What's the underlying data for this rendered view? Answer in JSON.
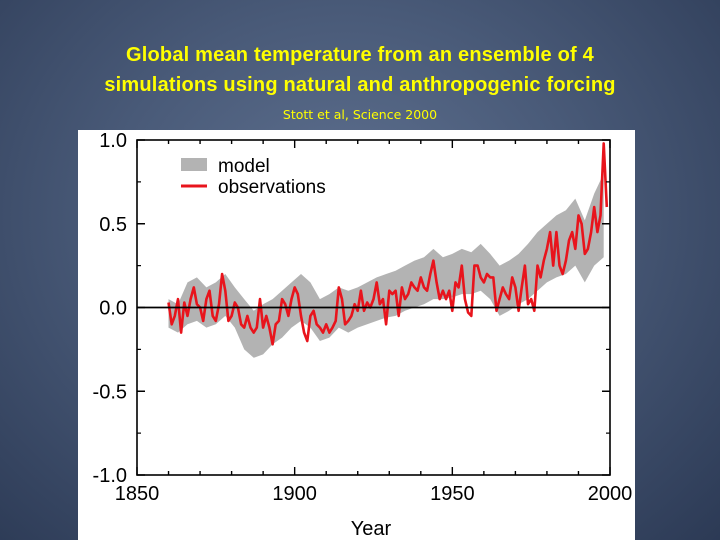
{
  "slide": {
    "title_line1": "Global mean temperature from an ensemble of 4",
    "title_line2": "simulations using natural and anthropogenic forcing",
    "citation": "Stott et al, Science 2000"
  },
  "colors": {
    "background": "#4a5b79",
    "title": "#ffff00",
    "model_band": "#b3b3b3",
    "observations": "#e8141c"
  },
  "chart_data": {
    "type": "line",
    "xlabel": "Year",
    "ylabel": "",
    "xlim": [
      1850,
      2000
    ],
    "ylim": [
      -1.0,
      1.0
    ],
    "x_ticks": [
      1850,
      1900,
      1950,
      2000
    ],
    "x_tick_labels": [
      "1850",
      "1900",
      "1950",
      "2000"
    ],
    "y_ticks": [
      1.0,
      0.5,
      0.0,
      -0.5,
      -1.0
    ],
    "y_tick_labels": [
      "1.0",
      "0.5",
      "0.0",
      "-0.5",
      "-1.0"
    ],
    "zero_line": 0.0,
    "grid": false,
    "legend_position": "top-left",
    "series": [
      {
        "name": "model",
        "kind": "band",
        "color": "#b3b3b3",
        "x": [
          1860,
          1863,
          1866,
          1869,
          1872,
          1875,
          1878,
          1881,
          1884,
          1887,
          1890,
          1893,
          1896,
          1899,
          1902,
          1905,
          1908,
          1911,
          1914,
          1917,
          1920,
          1923,
          1926,
          1929,
          1932,
          1935,
          1938,
          1941,
          1944,
          1947,
          1950,
          1953,
          1956,
          1959,
          1962,
          1965,
          1968,
          1971,
          1974,
          1977,
          1980,
          1983,
          1986,
          1989,
          1992,
          1995,
          1998
        ],
        "lower": [
          -0.12,
          -0.15,
          -0.1,
          -0.08,
          -0.12,
          -0.1,
          -0.05,
          -0.12,
          -0.25,
          -0.3,
          -0.28,
          -0.22,
          -0.18,
          -0.12,
          -0.08,
          -0.12,
          -0.2,
          -0.18,
          -0.12,
          -0.15,
          -0.12,
          -0.1,
          -0.08,
          -0.06,
          -0.05,
          -0.02,
          0.0,
          0.02,
          0.05,
          0.05,
          0.06,
          0.08,
          0.08,
          0.1,
          0.05,
          -0.05,
          -0.02,
          0.02,
          0.05,
          0.1,
          0.15,
          0.18,
          0.2,
          0.25,
          0.15,
          0.25,
          0.3
        ],
        "upper": [
          0.05,
          0.02,
          0.15,
          0.18,
          0.12,
          0.15,
          0.2,
          0.12,
          0.05,
          -0.02,
          0.02,
          0.05,
          0.1,
          0.15,
          0.2,
          0.15,
          0.05,
          0.08,
          0.12,
          0.1,
          0.12,
          0.15,
          0.18,
          0.2,
          0.22,
          0.25,
          0.28,
          0.3,
          0.35,
          0.3,
          0.32,
          0.35,
          0.33,
          0.38,
          0.32,
          0.25,
          0.28,
          0.32,
          0.38,
          0.45,
          0.5,
          0.55,
          0.58,
          0.65,
          0.52,
          0.68,
          0.8
        ]
      },
      {
        "name": "observations",
        "kind": "line",
        "color": "#e8141c",
        "x": [
          1860,
          1861,
          1862,
          1863,
          1864,
          1865,
          1866,
          1867,
          1868,
          1869,
          1870,
          1871,
          1872,
          1873,
          1874,
          1875,
          1876,
          1877,
          1878,
          1879,
          1880,
          1881,
          1882,
          1883,
          1884,
          1885,
          1886,
          1887,
          1888,
          1889,
          1890,
          1891,
          1892,
          1893,
          1894,
          1895,
          1896,
          1897,
          1898,
          1899,
          1900,
          1901,
          1902,
          1903,
          1904,
          1905,
          1906,
          1907,
          1908,
          1909,
          1910,
          1911,
          1912,
          1913,
          1914,
          1915,
          1916,
          1917,
          1918,
          1919,
          1920,
          1921,
          1922,
          1923,
          1924,
          1925,
          1926,
          1927,
          1928,
          1929,
          1930,
          1931,
          1932,
          1933,
          1934,
          1935,
          1936,
          1937,
          1938,
          1939,
          1940,
          1941,
          1942,
          1943,
          1944,
          1945,
          1946,
          1947,
          1948,
          1949,
          1950,
          1951,
          1952,
          1953,
          1954,
          1955,
          1956,
          1957,
          1958,
          1959,
          1960,
          1961,
          1962,
          1963,
          1964,
          1965,
          1966,
          1967,
          1968,
          1969,
          1970,
          1971,
          1972,
          1973,
          1974,
          1975,
          1976,
          1977,
          1978,
          1979,
          1980,
          1981,
          1982,
          1983,
          1984,
          1985,
          1986,
          1987,
          1988,
          1989,
          1990,
          1991,
          1992,
          1993,
          1994,
          1995,
          1996,
          1997,
          1998,
          1999
        ],
        "y": [
          0.03,
          -0.1,
          -0.05,
          0.05,
          -0.15,
          0.03,
          -0.05,
          0.05,
          0.12,
          0.02,
          0.0,
          -0.08,
          0.05,
          0.1,
          -0.05,
          -0.08,
          0.02,
          0.2,
          0.1,
          -0.08,
          -0.05,
          0.03,
          0.0,
          -0.1,
          -0.12,
          -0.05,
          -0.12,
          -0.15,
          -0.12,
          0.05,
          -0.12,
          -0.05,
          -0.12,
          -0.22,
          -0.1,
          -0.08,
          0.05,
          0.02,
          -0.05,
          0.05,
          0.12,
          0.08,
          -0.05,
          -0.15,
          -0.2,
          -0.05,
          -0.02,
          -0.1,
          -0.12,
          -0.15,
          -0.1,
          -0.15,
          -0.12,
          -0.08,
          0.12,
          0.05,
          -0.1,
          -0.08,
          -0.05,
          0.02,
          -0.02,
          0.1,
          -0.02,
          0.03,
          0.0,
          0.05,
          0.15,
          0.02,
          0.05,
          -0.1,
          0.1,
          0.08,
          0.1,
          -0.05,
          0.12,
          0.05,
          0.08,
          0.15,
          0.12,
          0.1,
          0.18,
          0.12,
          0.1,
          0.2,
          0.28,
          0.15,
          0.05,
          0.1,
          0.05,
          0.1,
          -0.02,
          0.15,
          0.12,
          0.25,
          0.05,
          -0.03,
          -0.05,
          0.25,
          0.25,
          0.18,
          0.15,
          0.2,
          0.18,
          0.18,
          -0.02,
          0.05,
          0.12,
          0.08,
          0.05,
          0.18,
          0.12,
          -0.02,
          0.12,
          0.25,
          0.02,
          0.05,
          -0.02,
          0.25,
          0.18,
          0.28,
          0.35,
          0.45,
          0.25,
          0.45,
          0.25,
          0.2,
          0.28,
          0.4,
          0.45,
          0.35,
          0.55,
          0.5,
          0.32,
          0.35,
          0.45,
          0.6,
          0.45,
          0.55,
          0.98,
          0.6
        ]
      }
    ]
  }
}
